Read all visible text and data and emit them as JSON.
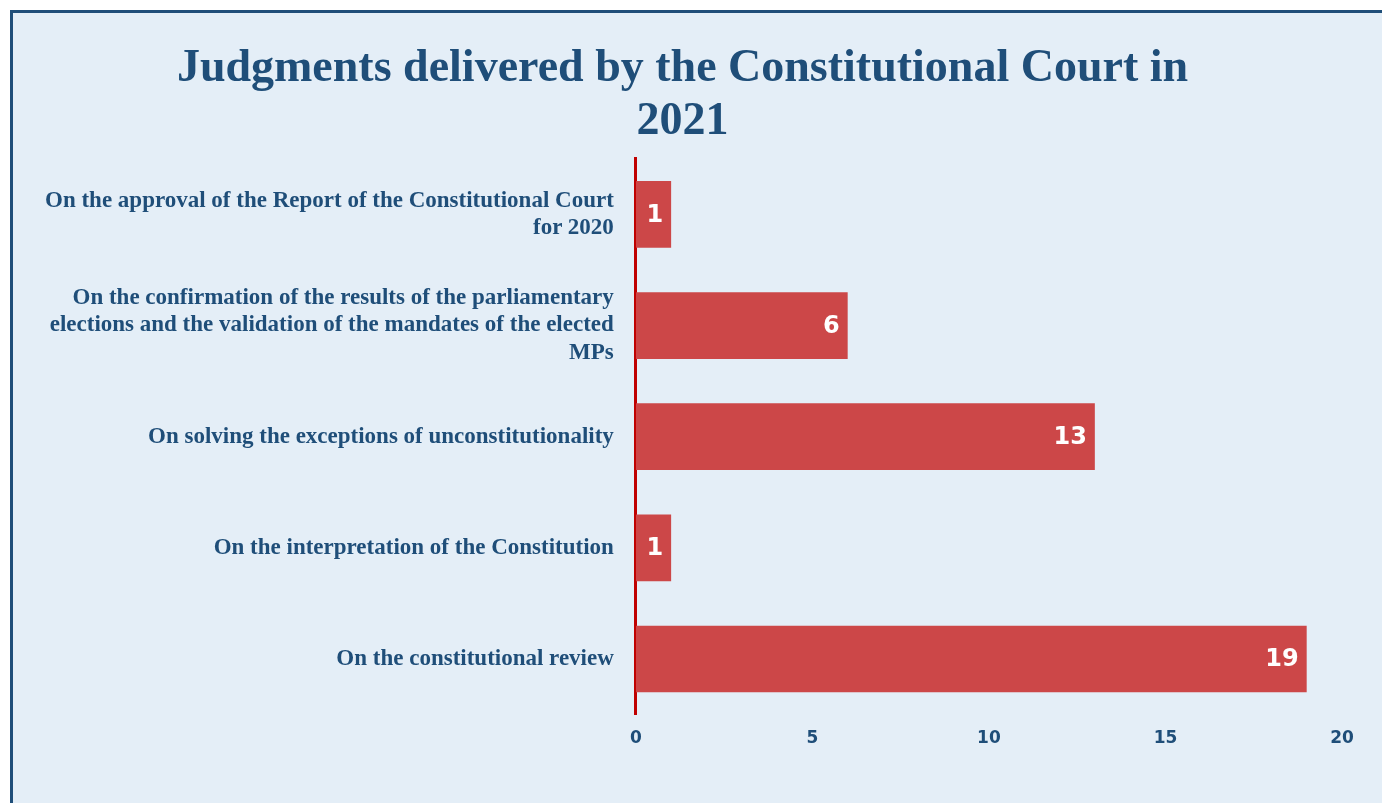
{
  "chart_data": {
    "type": "bar",
    "orientation": "horizontal",
    "title": "Judgments delivered by the Constitutional Court in 2021",
    "categories": [
      "On the approval of the Report of the Constitutional Court for 2020",
      "On the confirmation of the results of the parliamentary elections and the validation of the mandates of the elected MPs",
      "On solving the exceptions of unconstitutionality",
      "On the interpretation of the Constitution",
      "On the constitutional review"
    ],
    "values": [
      1,
      6,
      13,
      1,
      19
    ],
    "color": "#cc4748",
    "xlim": [
      0,
      20
    ],
    "xticks": [
      0,
      5,
      10,
      15,
      20
    ],
    "grid": false,
    "legend": false,
    "data_labels": true
  }
}
